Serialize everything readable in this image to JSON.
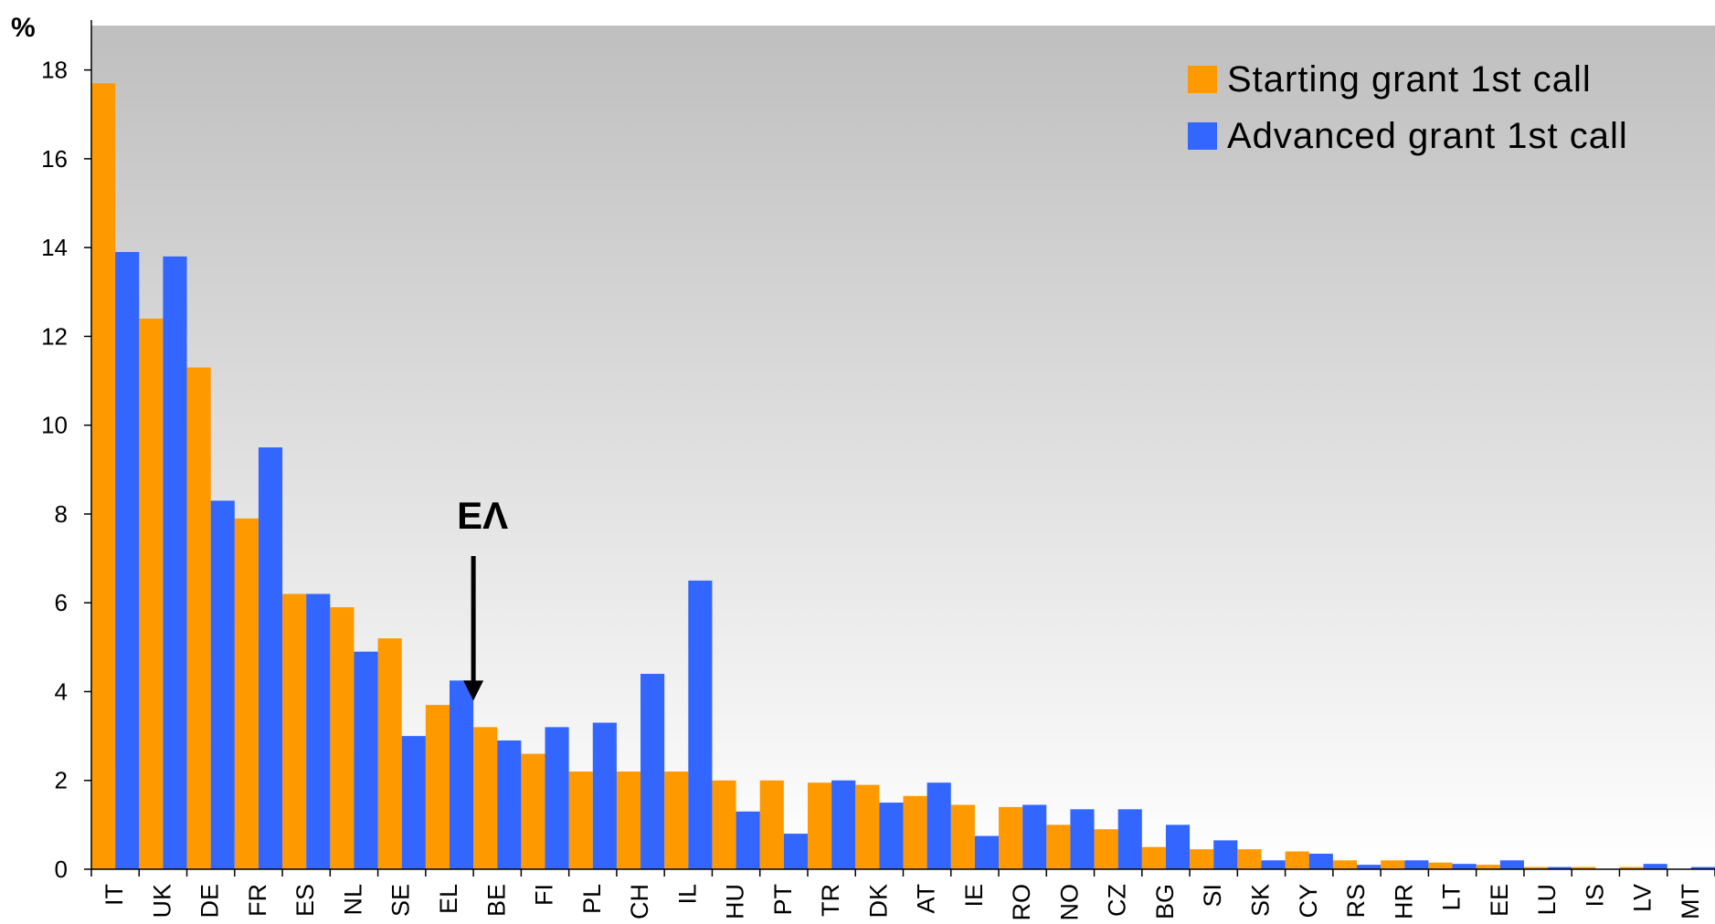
{
  "chart_data": {
    "type": "bar",
    "ylabel": "%",
    "ylim": [
      0,
      19
    ],
    "yticks": [
      0,
      2,
      4,
      6,
      8,
      10,
      12,
      14,
      16,
      18
    ],
    "legend_position": "top-right",
    "grid": false,
    "categories": [
      "IT",
      "UK",
      "DE",
      "FR",
      "ES",
      "NL",
      "SE",
      "EL",
      "BE",
      "FI",
      "PL",
      "CH",
      "IL",
      "HU",
      "PT",
      "TR",
      "DK",
      "AT",
      "IE",
      "RO",
      "NO",
      "CZ",
      "BG",
      "SI",
      "SK",
      "CY",
      "RS",
      "HR",
      "LT",
      "EE",
      "LU",
      "IS",
      "LV",
      "MT"
    ],
    "series": [
      {
        "name": "Starting grant 1st call",
        "color": "#FF9900",
        "values": [
          17.7,
          12.4,
          11.3,
          7.9,
          6.2,
          5.9,
          5.2,
          3.7,
          3.2,
          2.6,
          2.2,
          2.2,
          2.2,
          2.0,
          2.0,
          1.95,
          1.9,
          1.65,
          1.45,
          1.4,
          1.0,
          0.9,
          0.5,
          0.45,
          0.45,
          0.4,
          0.2,
          0.2,
          0.15,
          0.1,
          0.05,
          0.05,
          0.05,
          0.0
        ]
      },
      {
        "name": "Advanced grant 1st call",
        "color": "#3366FF",
        "values": [
          13.9,
          13.8,
          8.3,
          9.5,
          6.2,
          4.9,
          3.0,
          4.25,
          2.9,
          3.2,
          3.3,
          4.4,
          6.5,
          1.3,
          0.8,
          2.0,
          1.5,
          1.95,
          0.75,
          1.45,
          1.35,
          1.35,
          1.0,
          0.65,
          0.2,
          0.35,
          0.1,
          0.2,
          0.12,
          0.2,
          0.05,
          0.0,
          0.12,
          0.05
        ]
      }
    ],
    "annotation": {
      "text": "ΕΛ",
      "category": "EL"
    }
  }
}
